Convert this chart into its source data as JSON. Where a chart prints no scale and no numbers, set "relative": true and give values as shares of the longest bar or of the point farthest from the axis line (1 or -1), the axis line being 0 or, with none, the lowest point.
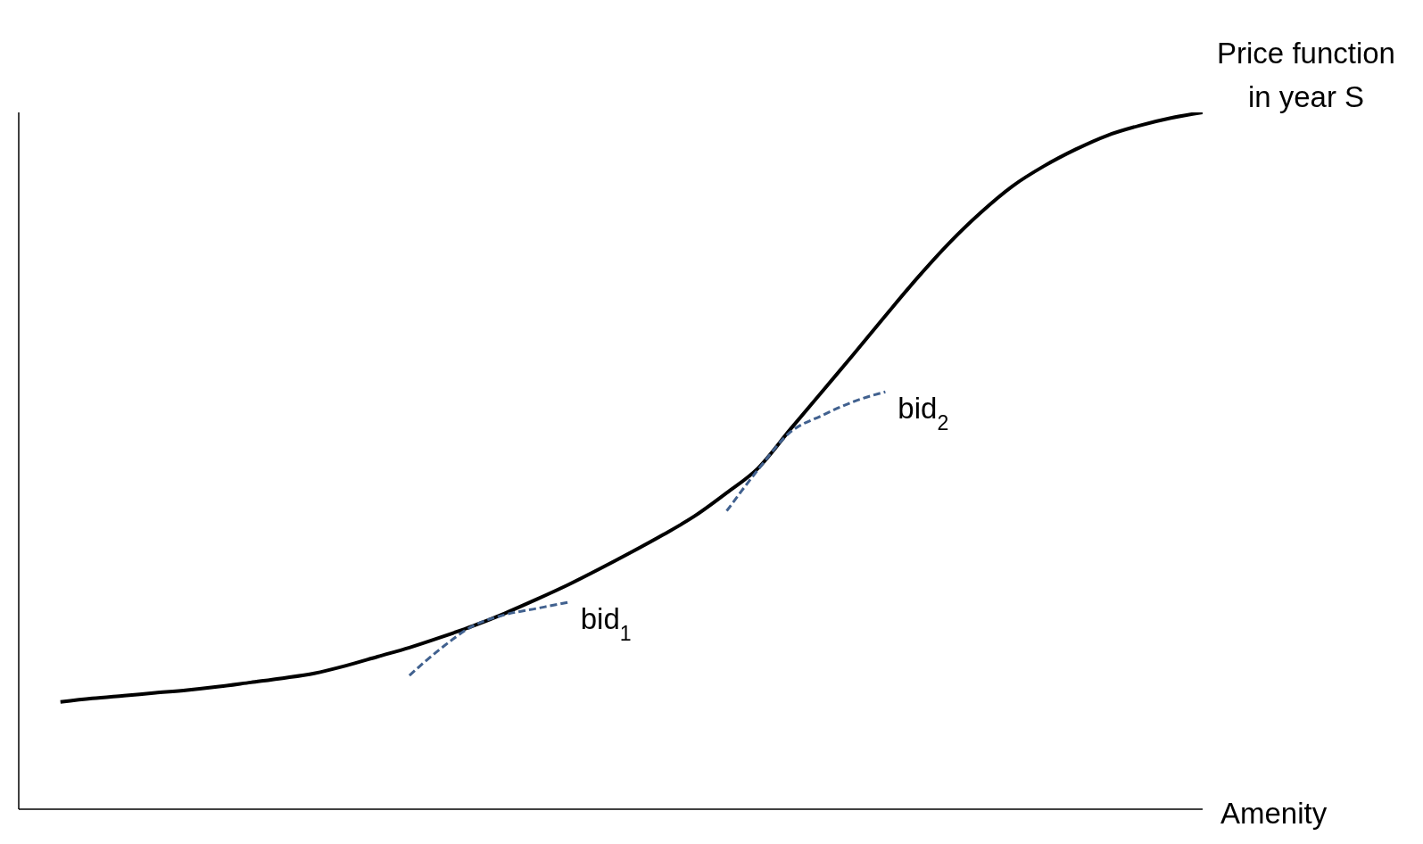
{
  "chart_data": {
    "type": "line",
    "xlabel": "Amenity",
    "relative": true,
    "marker": "none",
    "grid": false,
    "legend": false,
    "categories": [
      null,
      null,
      null,
      null,
      null,
      null,
      null,
      null,
      null,
      null,
      null,
      null,
      null,
      null,
      null,
      null,
      null,
      null,
      null,
      null,
      null,
      null,
      null,
      null,
      null,
      null,
      null,
      null,
      null,
      null,
      null,
      null,
      null,
      null,
      null,
      null,
      null
    ],
    "series": [
      {
        "name": "Price function in year S",
        "color": "#000000",
        "line_style": "solid",
        "values": [
          0.154,
          0.159,
          0.163,
          0.167,
          0.171,
          0.176,
          0.182,
          0.188,
          0.195,
          0.206,
          0.219,
          0.232,
          0.247,
          0.263,
          0.281,
          0.301,
          0.322,
          0.345,
          0.369,
          0.394,
          0.421,
          0.454,
          0.49,
          0.545,
          0.599,
          0.653,
          0.708,
          0.762,
          0.812,
          0.856,
          0.894,
          0.923,
          0.947,
          0.967,
          0.981,
          0.992,
          1.0
        ]
      },
      {
        "name": "bid$_{1}$",
        "color": "#41618f",
        "line_style": "dashed",
        "values": [
          null,
          null,
          null,
          null,
          null,
          null,
          null,
          null,
          null,
          null,
          null,
          0.192,
          0.231,
          0.263,
          0.279,
          0.288,
          0.297,
          null,
          null,
          null,
          null,
          null,
          null,
          null,
          null,
          null,
          null,
          null,
          null,
          null,
          null,
          null,
          null,
          null,
          null,
          null,
          null
        ]
      },
      {
        "name": "bid$_{2}$",
        "color": "#41618f",
        "line_style": "dashed",
        "values": [
          null,
          null,
          null,
          null,
          null,
          null,
          null,
          null,
          null,
          null,
          null,
          null,
          null,
          null,
          null,
          null,
          null,
          null,
          null,
          null,
          null,
          0.428,
          0.488,
          0.541,
          0.565,
          0.585,
          0.599,
          null,
          null,
          null,
          null,
          null,
          null,
          null,
          null,
          null,
          null
        ]
      }
    ]
  }
}
